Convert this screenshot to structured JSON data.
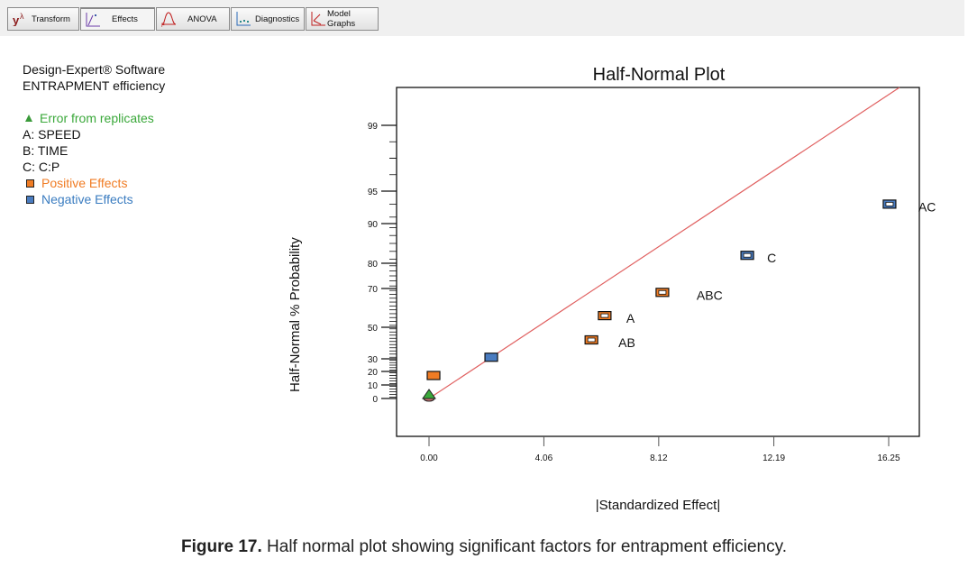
{
  "toolbar": {
    "tabs": [
      {
        "label": "Transform",
        "icon": "transform-icon"
      },
      {
        "label": "Effects",
        "icon": "effects-icon",
        "active": true
      },
      {
        "label": "ANOVA",
        "icon": "anova-icon"
      },
      {
        "label": "Diagnostics",
        "icon": "diagnostics-icon"
      },
      {
        "label": "Model Graphs",
        "icon": "model-graphs-icon"
      }
    ]
  },
  "legend": {
    "software": "Design-Expert® Software",
    "response": "ENTRAPMENT efficiency",
    "error_label": "Error from replicates",
    "factors": [
      "A: SPEED",
      "B: TIME",
      "C: C:P"
    ],
    "positive_label": "Positive Effects",
    "negative_label": "Negative Effects"
  },
  "colors": {
    "positive": "#f07c24",
    "negative": "#4a7cc0",
    "error": "#3aa83a",
    "error_text": "#3aa83a",
    "positive_text": "#f07c24",
    "negative_text": "#3a7cc0",
    "reference_line": "#e06060"
  },
  "chart_data": {
    "type": "scatter",
    "title": "Half-Normal Plot",
    "xlabel": "|Standardized Effect|",
    "ylabel": "Half-Normal % Probability",
    "xlim": [
      -0.9,
      17.2
    ],
    "x_ticks": [
      0.0,
      4.06,
      8.12,
      12.19,
      16.25
    ],
    "x_tick_labels": [
      "0.00",
      "4.06",
      "8.12",
      "12.19",
      "16.25"
    ],
    "y_ticks": [
      0,
      10,
      20,
      30,
      50,
      70,
      80,
      90,
      95,
      99
    ],
    "y_tick_labels": [
      "0",
      "10",
      "20",
      "30",
      "50",
      "70",
      "80",
      "90",
      "95",
      "99"
    ],
    "reference_line": {
      "from": [
        0,
        0
      ],
      "to": [
        17.2,
        99.9
      ]
    },
    "points": [
      {
        "label": "",
        "x": 0.0,
        "y": 2,
        "type": "error"
      },
      {
        "label": "",
        "x": 0.16,
        "y": 17,
        "type": "positive"
      },
      {
        "label": "",
        "x": 2.2,
        "y": 31,
        "type": "negative"
      },
      {
        "label": "AB",
        "x": 5.74,
        "y": 42,
        "type": "positive",
        "hollow": true
      },
      {
        "label": "A",
        "x": 6.21,
        "y": 56,
        "type": "positive",
        "hollow": true
      },
      {
        "label": "ABC",
        "x": 8.25,
        "y": 68,
        "type": "positive",
        "hollow": true
      },
      {
        "label": "C",
        "x": 11.25,
        "y": 82,
        "type": "negative",
        "hollow": true
      },
      {
        "label": "AC",
        "x": 16.28,
        "y": 93,
        "type": "negative",
        "hollow": true
      }
    ],
    "legend": "left"
  },
  "caption": {
    "bold": "Figure 17.",
    "text": " Half normal plot showing significant factors for entrapment efficiency."
  }
}
